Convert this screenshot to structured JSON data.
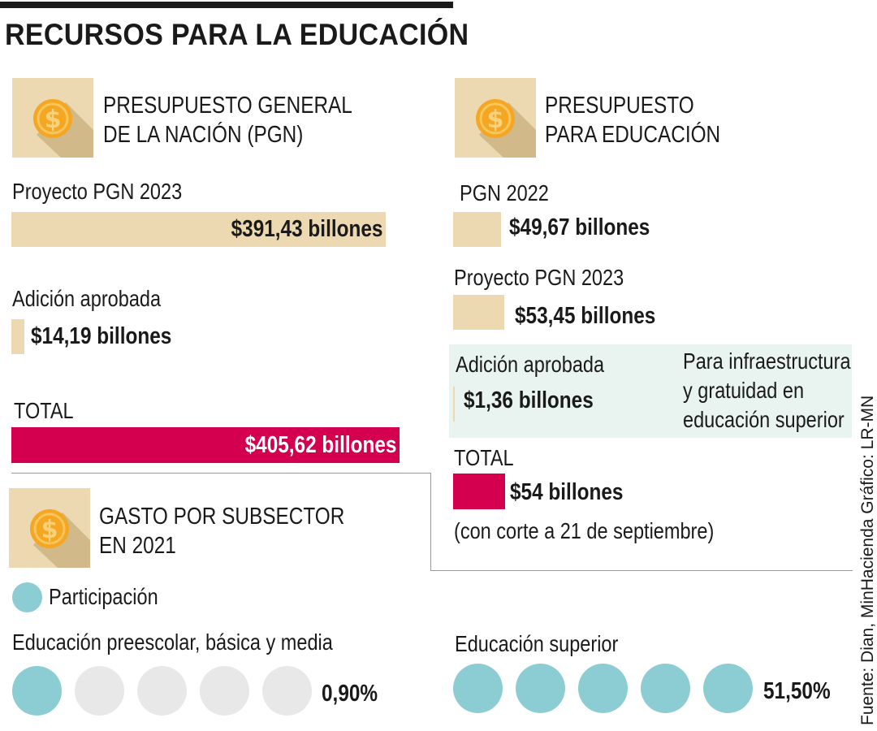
{
  "title": "RECURSOS PARA LA EDUCACIÓN",
  "pgn": {
    "header_line1": "PRESUPUESTO GENERAL",
    "header_line2": "DE LA NACIÓN (PGN)",
    "icon": "dollar-coin-icon",
    "items": [
      {
        "label": "Proyecto PGN 2023",
        "value_text": "$391,43 billones",
        "value": 391.43
      },
      {
        "label": "Adición aprobada",
        "value_text": "$14,19 billones",
        "value": 14.19
      },
      {
        "label": "TOTAL",
        "value_text": "$405,62 billones",
        "value": 405.62
      }
    ]
  },
  "edu": {
    "header_line1": "PRESUPUESTO",
    "header_line2": "PARA EDUCACIÓN",
    "icon": "dollar-coin-icon",
    "items": [
      {
        "label": "PGN 2022",
        "value_text": "$49,67 billones",
        "value": 49.67
      },
      {
        "label": "Proyecto PGN 2023",
        "value_text": "$53,45 billones",
        "value": 53.45
      },
      {
        "label": "Adición aprobada",
        "value_text": "$1,36 billones",
        "value": 1.36
      },
      {
        "label": "TOTAL",
        "value_text": "$54 billones",
        "value": 54
      }
    ],
    "note_line1": "Para infraestructura",
    "note_line2": "y gratuidad en",
    "note_line3": "educación superior",
    "total_note": "(con corte a 21 de septiembre)"
  },
  "gasto": {
    "header_line1": "GASTO POR SUBSECTOR",
    "header_line2": "EN 2021",
    "icon": "dollar-coin-icon",
    "legend_label": "Participación",
    "subsectors": [
      {
        "label": "Educación preescolar, básica y media",
        "value_text": "0,90%",
        "value": 0.9,
        "filled": 1,
        "total": 5
      },
      {
        "label": "Educación superior",
        "value_text": "51,50%",
        "value": 51.5,
        "filled": 5,
        "total": 5
      }
    ]
  },
  "source": "Fuente: Dian, MinHacienda  Gráfico: LR-MN",
  "colors": {
    "beige": "#ecd9b1",
    "pink": "#d4004f",
    "teal": "#8ccdd3",
    "grey_circle": "#e8e8e8",
    "panel": "#e9f3ef"
  },
  "chart_data": [
    {
      "type": "bar",
      "title": "PRESUPUESTO GENERAL DE LA NACIÓN (PGN)",
      "categories": [
        "Proyecto PGN 2023",
        "Adición aprobada",
        "TOTAL"
      ],
      "values": [
        391.43,
        14.19,
        405.62
      ]
    },
    {
      "type": "bar",
      "title": "PRESUPUESTO PARA EDUCACIÓN",
      "categories": [
        "PGN 2022",
        "Proyecto PGN 2023",
        "Adición aprobada",
        "TOTAL"
      ],
      "values": [
        49.67,
        53.45,
        1.36,
        54
      ]
    },
    {
      "type": "bar",
      "title": "GASTO POR SUBSECTOR EN 2021",
      "categories": [
        "Educación preescolar, básica y media",
        "Educación superior"
      ],
      "values": [
        0.9,
        51.5
      ]
    }
  ]
}
